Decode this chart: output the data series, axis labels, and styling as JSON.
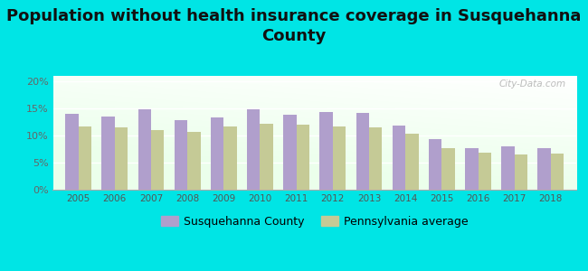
{
  "title": "Population without health insurance coverage in Susquehanna\nCounty",
  "years": [
    2005,
    2006,
    2007,
    2008,
    2009,
    2010,
    2011,
    2012,
    2013,
    2014,
    2015,
    2016,
    2017,
    2018
  ],
  "susquehanna": [
    14.0,
    13.5,
    14.8,
    12.8,
    13.3,
    14.8,
    13.8,
    14.4,
    14.1,
    11.8,
    9.3,
    7.7,
    8.0,
    7.7
  ],
  "pennsylvania": [
    11.6,
    11.5,
    11.0,
    10.6,
    11.6,
    12.1,
    12.0,
    11.6,
    11.5,
    10.4,
    7.6,
    6.8,
    6.5,
    6.7
  ],
  "susquehanna_color": "#b09fcc",
  "pennsylvania_color": "#c5ca96",
  "background_color": "#00e5e5",
  "title_fontsize": 13,
  "ylabel_ticks": [
    "0%",
    "5%",
    "10%",
    "15%",
    "20%"
  ],
  "ytick_vals": [
    0,
    5,
    10,
    15,
    20
  ],
  "ylim": [
    0,
    21
  ],
  "legend_susquehanna": "Susquehanna County",
  "legend_pennsylvania": "Pennsylvania average",
  "bar_width": 0.36
}
